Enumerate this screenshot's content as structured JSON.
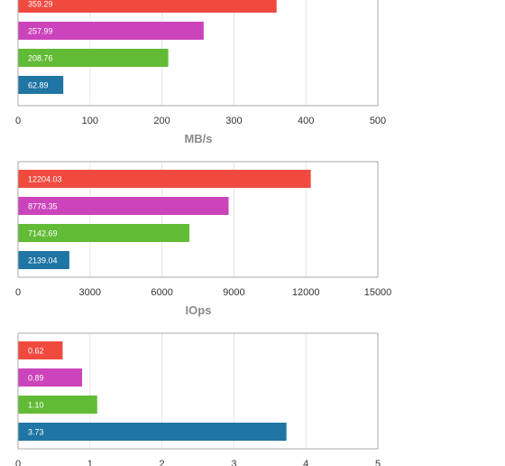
{
  "colors": {
    "series_1": "#f04a3f",
    "series_2": "#cc44bb",
    "series_3": "#62bb35",
    "series_4": "#1f75a3"
  },
  "chart_data": [
    {
      "type": "bar",
      "orientation": "horizontal",
      "values": [
        359.29,
        257.99,
        208.76,
        62.89
      ],
      "labels": [
        "359.29",
        "257.99",
        "208.76",
        "62.89"
      ],
      "xlabel": "MB/s",
      "xlim": [
        0,
        500
      ],
      "ticks": [
        0,
        100,
        200,
        300,
        400,
        500
      ],
      "tick_labels": [
        "0",
        "100",
        "200",
        "300",
        "400",
        "500"
      ],
      "grid": true
    },
    {
      "type": "bar",
      "orientation": "horizontal",
      "values": [
        12204.03,
        8778.35,
        7142.69,
        2139.04
      ],
      "labels": [
        "12204.03",
        "8778.35",
        "7142.69",
        "2139.04"
      ],
      "xlabel": "IOps",
      "xlim": [
        0,
        15000
      ],
      "ticks": [
        0,
        3000,
        6000,
        9000,
        12000,
        15000
      ],
      "tick_labels": [
        "0",
        "3000",
        "6000",
        "9000",
        "12000",
        "15000"
      ],
      "grid": true
    },
    {
      "type": "bar",
      "orientation": "horizontal",
      "values": [
        0.62,
        0.89,
        1.1,
        3.73
      ],
      "labels": [
        "0.62",
        "0.89",
        "1.10",
        "3.73"
      ],
      "xlabel": "",
      "xlim": [
        0,
        5
      ],
      "ticks": [
        0,
        1,
        2,
        3,
        4,
        5
      ],
      "tick_labels": [
        "0",
        "1",
        "2",
        "3",
        "4",
        "5"
      ],
      "grid": true
    }
  ]
}
